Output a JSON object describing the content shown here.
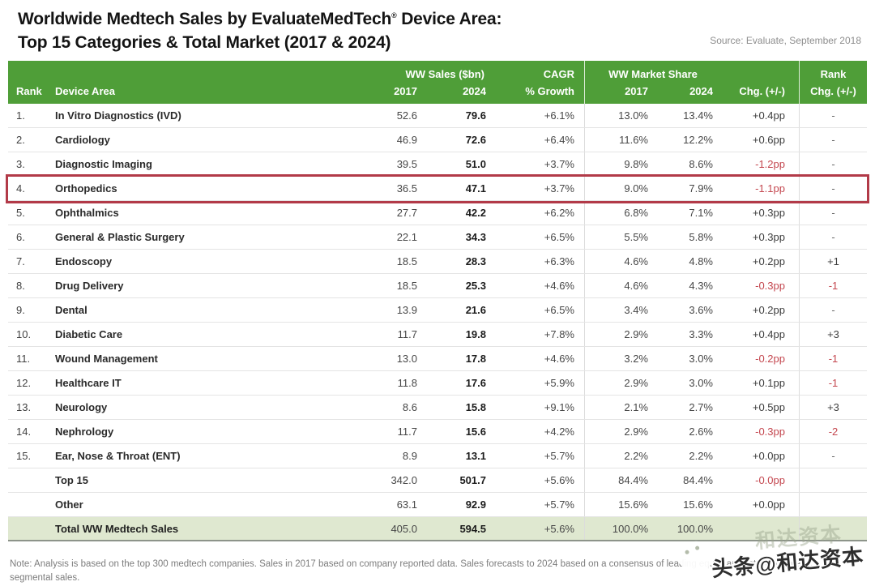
{
  "title": {
    "line1_main": "Worldwide Medtech Sales by EvaluateMedTech",
    "reg": "®",
    "line1_tail": " Device Area:",
    "line2": "Top 15 Categories & Total Market (2017 & 2024)"
  },
  "source": "Source: Evaluate, September 2018",
  "note": {
    "line1": "Note: Analysis is based on the top 300 medtech companies. Sales in 2017 based on company reported data. Sales forecasts to 2024 based on a consensus of leading equity analysts' estimates for",
    "line2": "segmental sales."
  },
  "watermark": {
    "text": "头条@和达资本",
    "ghost": "和达资本"
  },
  "colors": {
    "green": "#4f9e38",
    "totalbg": "#dfe8d0",
    "red": "#c4474f",
    "hl": "#b23a48"
  },
  "table": {
    "highlight_rank": "4.",
    "header": {
      "rank": "Rank",
      "device_area": "Device Area",
      "sales_group": "WW Sales ($bn)",
      "y2017": "2017",
      "y2024": "2024",
      "cagr_group": "CAGR",
      "cagr_sub": "% Growth",
      "share_group": "WW Market Share",
      "chg": "Chg. (+/-)",
      "rank_chg_group": "Rank"
    }
  },
  "chart_data": {
    "type": "table",
    "title": "Worldwide Medtech Sales by EvaluateMedTech® Device Area: Top 15 Categories & Total Market (2017 & 2024)",
    "columns": [
      "Rank",
      "Device Area",
      "WW Sales ($bn) 2017",
      "WW Sales ($bn) 2024",
      "CAGR % Growth",
      "WW Market Share 2017",
      "WW Market Share 2024",
      "Market Share Chg. (+/-)",
      "Rank Chg. (+/-)"
    ],
    "rows": [
      {
        "rank": "1.",
        "device_area": "In Vitro Diagnostics (IVD)",
        "sales_2017": "52.6",
        "sales_2024": "79.6",
        "cagr": "+6.1%",
        "share_2017": "13.0%",
        "share_2024": "13.4%",
        "share_chg": "+0.4pp",
        "rank_chg": "-"
      },
      {
        "rank": "2.",
        "device_area": "Cardiology",
        "sales_2017": "46.9",
        "sales_2024": "72.6",
        "cagr": "+6.4%",
        "share_2017": "11.6%",
        "share_2024": "12.2%",
        "share_chg": "+0.6pp",
        "rank_chg": "-"
      },
      {
        "rank": "3.",
        "device_area": "Diagnostic Imaging",
        "sales_2017": "39.5",
        "sales_2024": "51.0",
        "cagr": "+3.7%",
        "share_2017": "9.8%",
        "share_2024": "8.6%",
        "share_chg": "-1.2pp",
        "rank_chg": "-"
      },
      {
        "rank": "4.",
        "device_area": "Orthopedics",
        "sales_2017": "36.5",
        "sales_2024": "47.1",
        "cagr": "+3.7%",
        "share_2017": "9.0%",
        "share_2024": "7.9%",
        "share_chg": "-1.1pp",
        "rank_chg": "-"
      },
      {
        "rank": "5.",
        "device_area": "Ophthalmics",
        "sales_2017": "27.7",
        "sales_2024": "42.2",
        "cagr": "+6.2%",
        "share_2017": "6.8%",
        "share_2024": "7.1%",
        "share_chg": "+0.3pp",
        "rank_chg": "-"
      },
      {
        "rank": "6.",
        "device_area": "General & Plastic Surgery",
        "sales_2017": "22.1",
        "sales_2024": "34.3",
        "cagr": "+6.5%",
        "share_2017": "5.5%",
        "share_2024": "5.8%",
        "share_chg": "+0.3pp",
        "rank_chg": "-"
      },
      {
        "rank": "7.",
        "device_area": "Endoscopy",
        "sales_2017": "18.5",
        "sales_2024": "28.3",
        "cagr": "+6.3%",
        "share_2017": "4.6%",
        "share_2024": "4.8%",
        "share_chg": "+0.2pp",
        "rank_chg": "+1"
      },
      {
        "rank": "8.",
        "device_area": "Drug Delivery",
        "sales_2017": "18.5",
        "sales_2024": "25.3",
        "cagr": "+4.6%",
        "share_2017": "4.6%",
        "share_2024": "4.3%",
        "share_chg": "-0.3pp",
        "rank_chg": "-1"
      },
      {
        "rank": "9.",
        "device_area": "Dental",
        "sales_2017": "13.9",
        "sales_2024": "21.6",
        "cagr": "+6.5%",
        "share_2017": "3.4%",
        "share_2024": "3.6%",
        "share_chg": "+0.2pp",
        "rank_chg": "-"
      },
      {
        "rank": "10.",
        "device_area": "Diabetic Care",
        "sales_2017": "11.7",
        "sales_2024": "19.8",
        "cagr": "+7.8%",
        "share_2017": "2.9%",
        "share_2024": "3.3%",
        "share_chg": "+0.4pp",
        "rank_chg": "+3"
      },
      {
        "rank": "11.",
        "device_area": "Wound Management",
        "sales_2017": "13.0",
        "sales_2024": "17.8",
        "cagr": "+4.6%",
        "share_2017": "3.2%",
        "share_2024": "3.0%",
        "share_chg": "-0.2pp",
        "rank_chg": "-1"
      },
      {
        "rank": "12.",
        "device_area": "Healthcare IT",
        "sales_2017": "11.8",
        "sales_2024": "17.6",
        "cagr": "+5.9%",
        "share_2017": "2.9%",
        "share_2024": "3.0%",
        "share_chg": "+0.1pp",
        "rank_chg": "-1"
      },
      {
        "rank": "13.",
        "device_area": "Neurology",
        "sales_2017": "8.6",
        "sales_2024": "15.8",
        "cagr": "+9.1%",
        "share_2017": "2.1%",
        "share_2024": "2.7%",
        "share_chg": "+0.5pp",
        "rank_chg": "+3"
      },
      {
        "rank": "14.",
        "device_area": "Nephrology",
        "sales_2017": "11.7",
        "sales_2024": "15.6",
        "cagr": "+4.2%",
        "share_2017": "2.9%",
        "share_2024": "2.6%",
        "share_chg": "-0.3pp",
        "rank_chg": "-2"
      },
      {
        "rank": "15.",
        "device_area": "Ear, Nose & Throat (ENT)",
        "sales_2017": "8.9",
        "sales_2024": "13.1",
        "cagr": "+5.7%",
        "share_2017": "2.2%",
        "share_2024": "2.2%",
        "share_chg": "+0.0pp",
        "rank_chg": "-"
      }
    ],
    "summary_rows": [
      {
        "rank": "",
        "device_area": "Top 15",
        "sales_2017": "342.0",
        "sales_2024": "501.7",
        "cagr": "+5.6%",
        "share_2017": "84.4%",
        "share_2024": "84.4%",
        "share_chg": "-0.0pp",
        "rank_chg": ""
      },
      {
        "rank": "",
        "device_area": "Other",
        "sales_2017": "63.1",
        "sales_2024": "92.9",
        "cagr": "+5.7%",
        "share_2017": "15.6%",
        "share_2024": "15.6%",
        "share_chg": "+0.0pp",
        "rank_chg": ""
      }
    ],
    "total_row": {
      "rank": "",
      "device_area": "Total WW Medtech Sales",
      "sales_2017": "405.0",
      "sales_2024": "594.5",
      "cagr": "+5.6%",
      "share_2017": "100.0%",
      "share_2024": "100.0%",
      "share_chg": "",
      "rank_chg": ""
    }
  }
}
